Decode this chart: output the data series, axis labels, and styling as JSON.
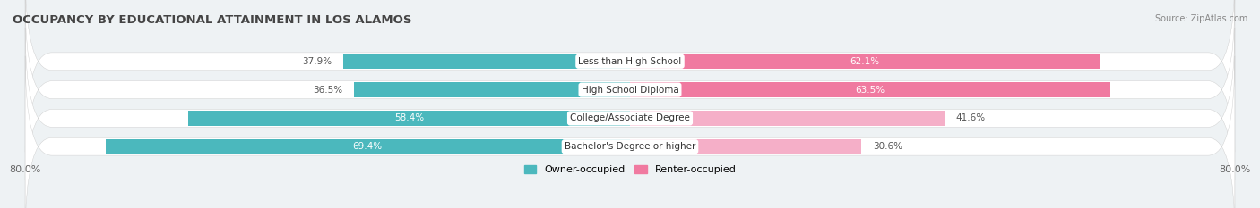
{
  "title": "OCCUPANCY BY EDUCATIONAL ATTAINMENT IN LOS ALAMOS",
  "source": "Source: ZipAtlas.com",
  "categories": [
    "Less than High School",
    "High School Diploma",
    "College/Associate Degree",
    "Bachelor's Degree or higher"
  ],
  "owner_pct": [
    37.9,
    36.5,
    58.4,
    69.4
  ],
  "renter_pct": [
    62.1,
    63.5,
    41.6,
    30.6
  ],
  "owner_color": "#4bb8bd",
  "renter_color_strong": "#f07aa0",
  "renter_color_light": "#f5afc8",
  "owner_label": "Owner-occupied",
  "renter_label": "Renter-occupied",
  "axis_limit": 80.0,
  "background_color": "#eef2f4",
  "row_bg_color": "#dde6e9",
  "title_fontsize": 9.5,
  "label_fontsize": 8,
  "pct_fontsize": 7.5,
  "tick_fontsize": 8,
  "source_fontsize": 7,
  "text_dark": "#555555",
  "text_white": "#ffffff"
}
